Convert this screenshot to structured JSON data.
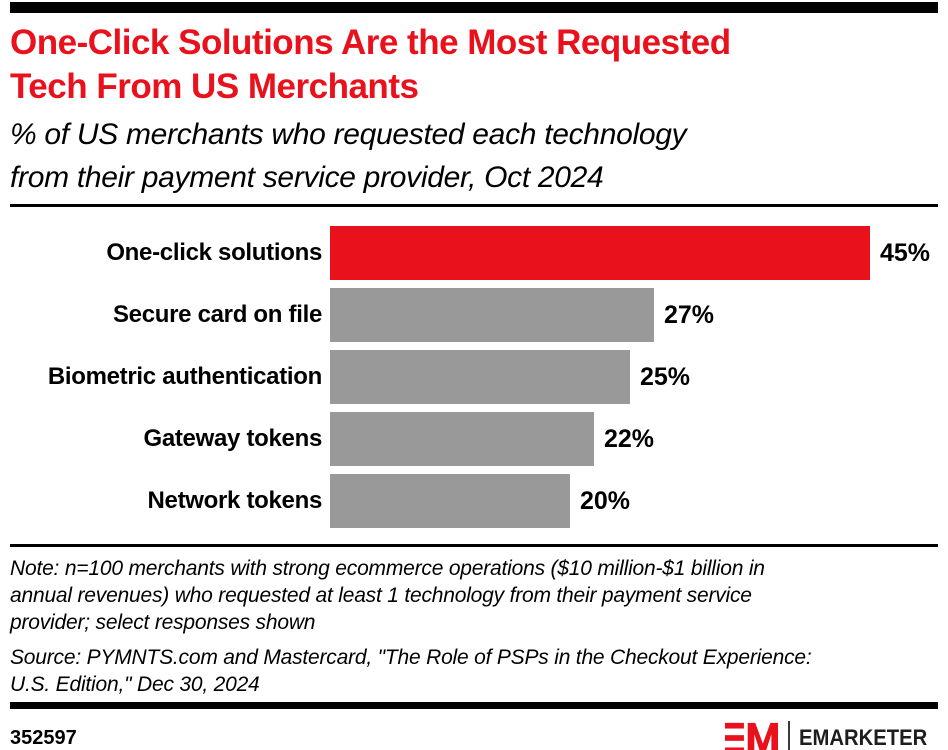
{
  "header": {
    "title": "One-Click Solutions Are the Most Requested\nTech From US Merchants",
    "subtitle": "% of US merchants who requested each technology\nfrom their payment service provider, Oct 2024"
  },
  "chart_data": {
    "type": "bar",
    "orientation": "horizontal",
    "title": "One-Click Solutions Are the Most Requested Tech From US Merchants",
    "subtitle": "% of US merchants who requested each technology from their payment service provider, Oct 2024",
    "categories": [
      "One-click solutions",
      "Secure card on file",
      "Biometric authentication",
      "Gateway tokens",
      "Network tokens"
    ],
    "values": [
      45,
      27,
      25,
      22,
      20
    ],
    "value_labels": [
      "45%",
      "27%",
      "25%",
      "22%",
      "20%"
    ],
    "unit": "%",
    "xlim": [
      0,
      50
    ],
    "grid": false,
    "legend": false,
    "highlight_index": 0,
    "bar_colors": {
      "highlight": "#E8111C",
      "default": "#999999"
    }
  },
  "footnote": {
    "note": "Note: n=100 merchants with strong ecommerce operations ($10 million-$1 billion in\nannual revenues) who requested at least 1 technology from their payment service\nprovider; select responses shown",
    "source": "Source: PYMNTS.com and Mastercard, \"The Role of PSPs in the Checkout Experience:\nU.S. Edition,\" Dec 30, 2024"
  },
  "footer": {
    "chart_id": "352597",
    "brand_name": "EMARKETER"
  },
  "colors": {
    "accent_red": "#E8111C",
    "bar_gray": "#999999",
    "black": "#000000",
    "brand_text": "#1e1e21"
  }
}
